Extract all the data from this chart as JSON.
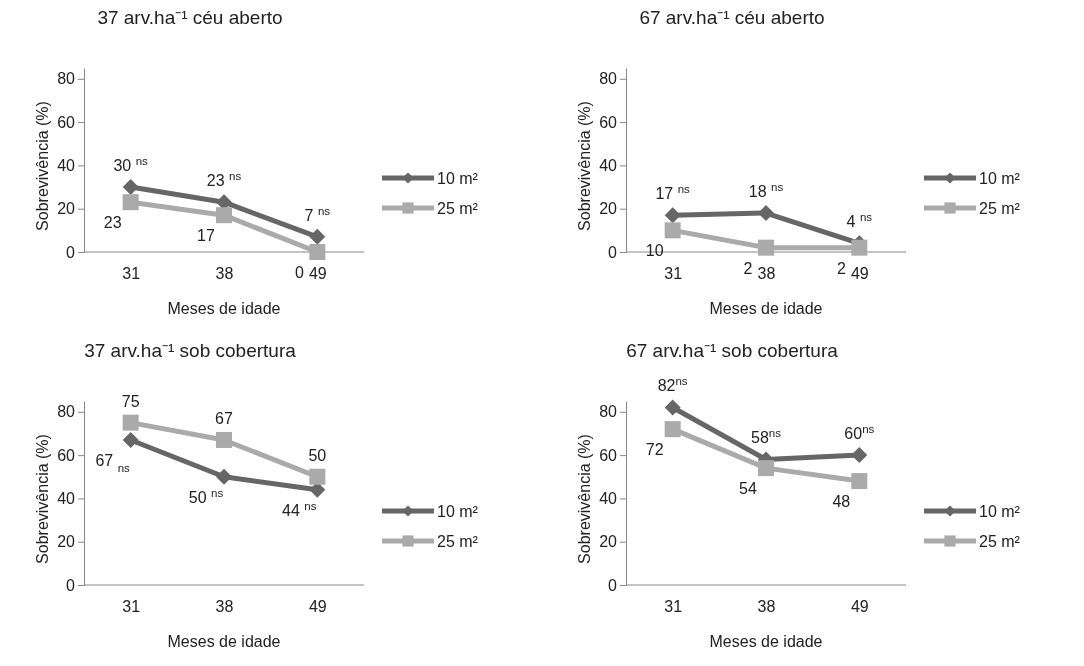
{
  "chart_data": [
    {
      "type": "line",
      "title": "37 arv.ha⁻¹ céu aberto",
      "xlabel": "Meses de idade",
      "ylabel": "Sobrevivência (%)",
      "categories": [
        "31",
        "38",
        "49"
      ],
      "ylim": [
        0,
        85
      ],
      "yticks": [
        0,
        20,
        40,
        60,
        80
      ],
      "grid": false,
      "legend": "right",
      "series": [
        {
          "name": "10 m²",
          "color": "#666666",
          "marker": "diamond",
          "values": [
            30,
            23,
            7
          ],
          "value_labels": [
            "30 $^{ns}$",
            "23 $^{ns}$",
            "7 $^{ns}$"
          ]
        },
        {
          "name": "25 m²",
          "color": "#aaaaaa",
          "marker": "square",
          "values": [
            23,
            17,
            0
          ],
          "value_labels": [
            "23",
            "17",
            "0"
          ]
        }
      ]
    },
    {
      "type": "line",
      "title": "67 arv.ha⁻¹ céu aberto",
      "xlabel": "Meses de idade",
      "ylabel": "Sobrevivência (%)",
      "categories": [
        "31",
        "38",
        "49"
      ],
      "ylim": [
        0,
        85
      ],
      "yticks": [
        0,
        20,
        40,
        60,
        80
      ],
      "grid": false,
      "legend": "right",
      "series": [
        {
          "name": "10 m²",
          "color": "#666666",
          "marker": "diamond",
          "values": [
            17,
            18,
            4
          ],
          "value_labels": [
            "17 $^{ns}$",
            "18 $^{ns}$",
            "4 $^{ns}$"
          ]
        },
        {
          "name": "25 m²",
          "color": "#aaaaaa",
          "marker": "square",
          "values": [
            10,
            2,
            2
          ],
          "value_labels": [
            "10",
            "2",
            "2"
          ]
        }
      ]
    },
    {
      "type": "line",
      "title": "37 arv.ha⁻¹ sob cobertura",
      "xlabel": "Meses de idade",
      "ylabel": "Sobrevivência (%)",
      "categories": [
        "31",
        "38",
        "49"
      ],
      "ylim": [
        0,
        85
      ],
      "yticks": [
        0,
        20,
        40,
        60,
        80
      ],
      "grid": false,
      "legend": "right",
      "series": [
        {
          "name": "10 m²",
          "color": "#666666",
          "marker": "diamond",
          "values": [
            67,
            50,
            44
          ],
          "value_labels": [
            "67 $_{ns}$",
            "50 $^{ns}$",
            "44 $^{ns}$"
          ]
        },
        {
          "name": "25 m²",
          "color": "#aaaaaa",
          "marker": "square",
          "values": [
            75,
            67,
            50
          ],
          "value_labels": [
            "75",
            "67",
            "50"
          ]
        }
      ]
    },
    {
      "type": "line",
      "title": "67 arv.ha⁻¹ sob cobertura",
      "xlabel": "Meses de idade",
      "ylabel": "Sobrevivência (%)",
      "categories": [
        "31",
        "38",
        "49"
      ],
      "ylim": [
        0,
        85
      ],
      "yticks": [
        0,
        20,
        40,
        60,
        80
      ],
      "grid": false,
      "legend": "right",
      "series": [
        {
          "name": "10 m²",
          "color": "#666666",
          "marker": "diamond",
          "values": [
            82,
            58,
            60
          ],
          "value_labels": [
            "82$^{ns}$",
            "58$^{ns}$",
            "60$^{ns}$"
          ]
        },
        {
          "name": "25 m²",
          "color": "#aaaaaa",
          "marker": "square",
          "values": [
            72,
            54,
            48
          ],
          "value_labels": [
            "72",
            "54",
            "48"
          ]
        }
      ]
    }
  ]
}
